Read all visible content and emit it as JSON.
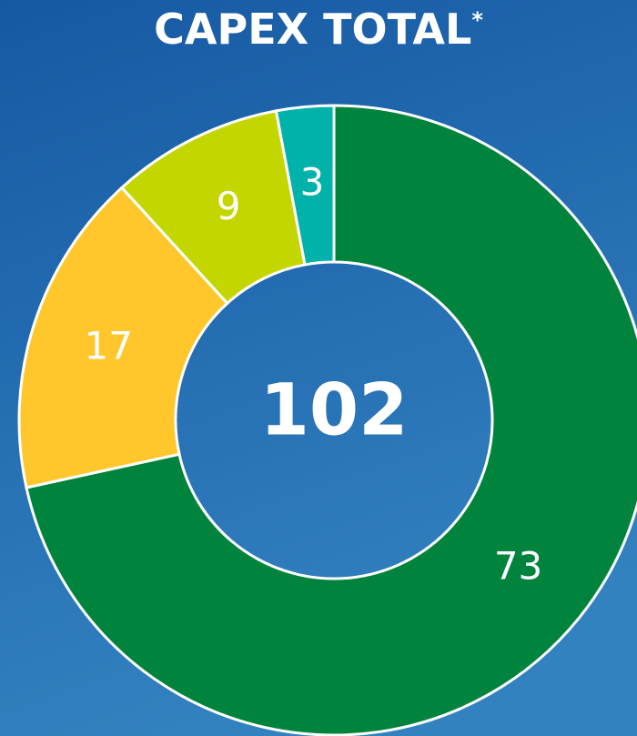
{
  "chart_data": {
    "type": "donut",
    "title": "CAPEX TOTAL",
    "title_mark": "*",
    "total": 102,
    "categories": [
      null,
      null,
      null,
      null
    ],
    "values": [
      73,
      17,
      9,
      3
    ],
    "colors": [
      "#00843d",
      "#ffc72c",
      "#c4d600",
      "#00b2a9"
    ]
  }
}
